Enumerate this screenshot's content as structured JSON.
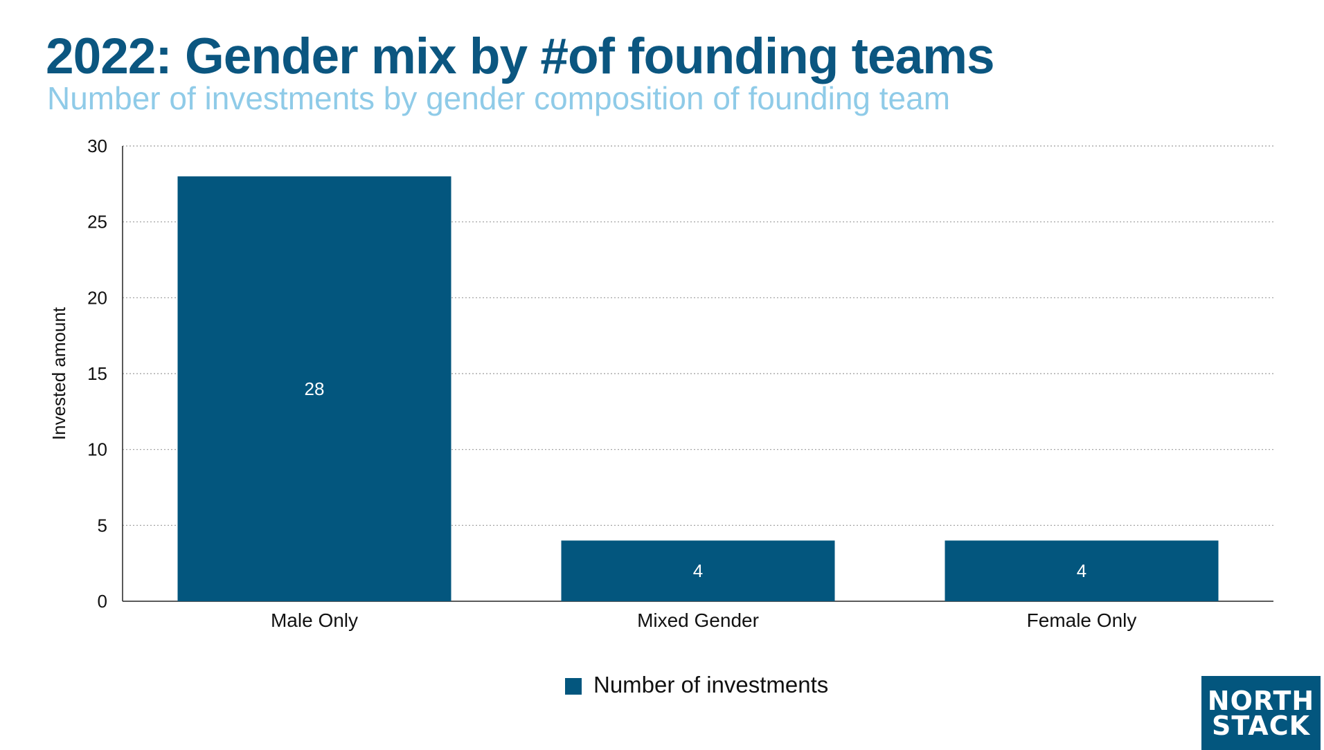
{
  "header": {
    "title": "2022: Gender mix by #of founding teams",
    "subtitle": "Number of investments by gender composition of founding team"
  },
  "colors": {
    "title": "#0b5680",
    "subtitle": "#8fcbe8",
    "bar": "#03567e",
    "bar_label": "#ffffff",
    "axis_text": "#111111",
    "grid": "#9a9a9a",
    "logo_bg": "#03567e"
  },
  "logo": {
    "line1": "NORTH",
    "line2": "STACK"
  },
  "chart_data": {
    "type": "bar",
    "categories": [
      "Male Only",
      "Mixed Gender",
      "Female Only"
    ],
    "series": [
      {
        "name": "Number of investments",
        "values": [
          28,
          4,
          4
        ]
      }
    ],
    "data_labels": [
      "28",
      "4",
      "4"
    ],
    "title": "2022: Gender mix by #of founding teams",
    "subtitle": "Number of investments by gender composition of founding team",
    "xlabel": "",
    "ylabel": "Invested amount",
    "ylim": [
      0,
      30
    ],
    "yticks": [
      0,
      5,
      10,
      15,
      20,
      25,
      30
    ],
    "grid": true,
    "legend": "bottom-center"
  }
}
